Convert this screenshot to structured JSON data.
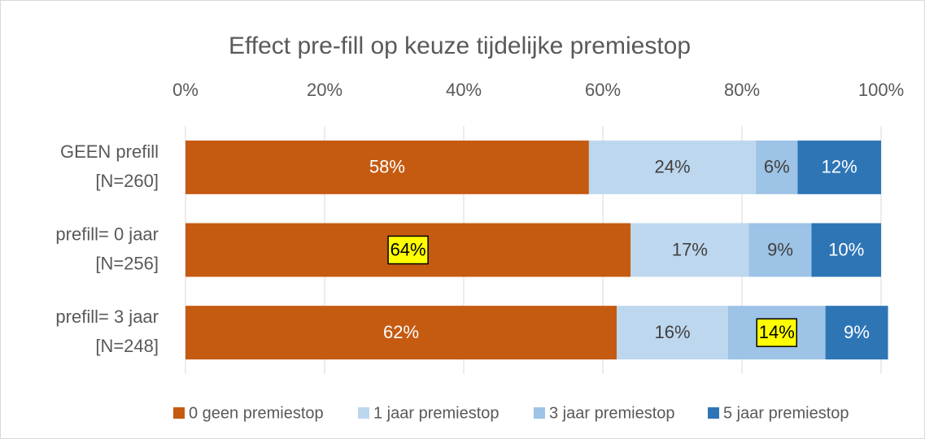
{
  "chart_data": {
    "type": "stacked_barh",
    "title": "Effect pre-fill op keuze tijdelijke premiestop",
    "categories": [
      "GEEN prefill\n[N=260]",
      "prefill= 0 jaar\n[N=256]",
      "prefill= 3 jaar\n[N=248]"
    ],
    "series": [
      {
        "name": "0 geen premiestop",
        "color": "#c55a11",
        "label_color": "#ffffff",
        "values": [
          58,
          64,
          62
        ],
        "value_labels": [
          "58%",
          "64%",
          "62%"
        ]
      },
      {
        "name": "1 jaar premiestop",
        "color": "#bdd7ee",
        "label_color": "#404040",
        "values": [
          24,
          17,
          16
        ],
        "value_labels": [
          "24%",
          "17%",
          "16%"
        ]
      },
      {
        "name": "3 jaar premiestop",
        "color": "#9dc3e6",
        "label_color": "#404040",
        "values": [
          6,
          9,
          14
        ],
        "value_labels": [
          "6%",
          "9%",
          "14%"
        ]
      },
      {
        "name": "5 jaar premiestop",
        "color": "#2e75b6",
        "label_color": "#ffffff",
        "values": [
          12,
          10,
          9
        ],
        "value_labels": [
          "12%",
          "10%",
          "9%"
        ]
      }
    ],
    "highlight": [
      [
        0,
        1
      ],
      [
        2,
        2
      ]
    ],
    "highlight_color": "#ffff00",
    "xlim": [
      0,
      100
    ],
    "xticks": [
      {
        "value": 0,
        "label": "0%"
      },
      {
        "value": 20,
        "label": "20%"
      },
      {
        "value": 40,
        "label": "40%"
      },
      {
        "value": 60,
        "label": "60%"
      },
      {
        "value": 80,
        "label": "80%"
      },
      {
        "value": 100,
        "label": "100%"
      }
    ],
    "grid": true,
    "legend": "bottom"
  }
}
